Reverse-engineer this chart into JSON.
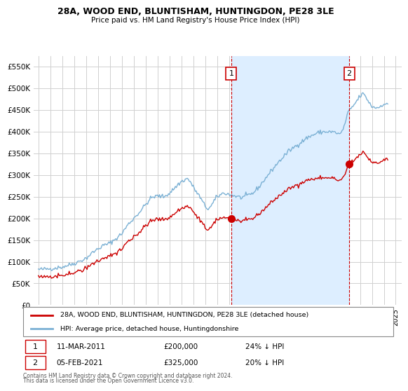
{
  "title": "28A, WOOD END, BLUNTISHAM, HUNTINGDON, PE28 3LE",
  "subtitle": "Price paid vs. HM Land Registry's House Price Index (HPI)",
  "legend_label_red": "28A, WOOD END, BLUNTISHAM, HUNTINGDON, PE28 3LE (detached house)",
  "legend_label_blue": "HPI: Average price, detached house, Huntingdonshire",
  "annotation1_date": "11-MAR-2011",
  "annotation1_price": "£200,000",
  "annotation1_hpi": "24% ↓ HPI",
  "annotation2_date": "05-FEB-2021",
  "annotation2_price": "£325,000",
  "annotation2_hpi": "20% ↓ HPI",
  "footnote1": "Contains HM Land Registry data © Crown copyright and database right 2024.",
  "footnote2": "This data is licensed under the Open Government Licence v3.0.",
  "ylim": [
    0,
    575000
  ],
  "yticks": [
    0,
    50000,
    100000,
    150000,
    200000,
    250000,
    300000,
    350000,
    400000,
    450000,
    500000,
    550000
  ],
  "background_color": "#ffffff",
  "grid_color": "#d0d0d0",
  "red_color": "#cc0000",
  "blue_color": "#7ab0d4",
  "shade_color": "#ddeeff",
  "sale1_year": 2011.19,
  "sale1_value": 200000,
  "sale2_year": 2021.09,
  "sale2_value": 325000,
  "hpi_scale1": 0.76,
  "hpi_scale2": 0.8,
  "hpi_base_year": 1995.0,
  "hpi_base_value": 63000,
  "xlim_left": 1994.6,
  "xlim_right": 2025.5
}
